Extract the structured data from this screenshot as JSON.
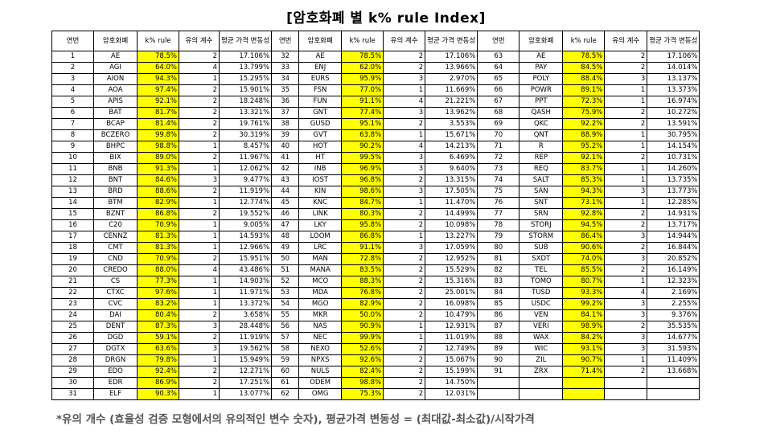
{
  "title": "[암호화폐 별  k% rule Index]",
  "headers": [
    "연번",
    "암호화폐",
    "k% rule",
    "유의 계수",
    "평균 가격 변동성"
  ],
  "rows": [
    [
      "1",
      "AE",
      "78.5%",
      "2",
      "17.106%"
    ],
    [
      "2",
      "AGI",
      "64.0%",
      "4",
      "13.799%"
    ],
    [
      "3",
      "AION",
      "94.3%",
      "1",
      "15.295%"
    ],
    [
      "4",
      "AOA",
      "97.4%",
      "2",
      "15.901%"
    ],
    [
      "5",
      "APIS",
      "92.1%",
      "2",
      "18.248%"
    ],
    [
      "6",
      "BAT",
      "81.7%",
      "2",
      "13.321%"
    ],
    [
      "7",
      "BCAP",
      "81.4%",
      "2",
      "19.761%"
    ],
    [
      "8",
      "BCZERO",
      "99.8%",
      "2",
      "30.319%"
    ],
    [
      "9",
      "BHPC",
      "98.8%",
      "1",
      "8.457%"
    ],
    [
      "10",
      "BIX",
      "89.0%",
      "2",
      "11.967%"
    ],
    [
      "11",
      "BNB",
      "91.3%",
      "1",
      "12.062%"
    ],
    [
      "12",
      "BNT",
      "84.6%",
      "3",
      "9.477%"
    ],
    [
      "13",
      "BRD",
      "88.6%",
      "2",
      "11.919%"
    ],
    [
      "14",
      "BTM",
      "82.9%",
      "1",
      "12.774%"
    ],
    [
      "15",
      "BZNT",
      "86.8%",
      "2",
      "19.552%"
    ],
    [
      "16",
      "C20",
      "70.9%",
      "1",
      "9.005%"
    ],
    [
      "17",
      "CENNZ",
      "81.3%",
      "1",
      "14.593%"
    ],
    [
      "18",
      "CMT",
      "81.3%",
      "1",
      "12.966%"
    ],
    [
      "19",
      "CND",
      "70.9%",
      "2",
      "15.951%"
    ],
    [
      "20",
      "CREDO",
      "88.0%",
      "4",
      "43.486%"
    ],
    [
      "21",
      "CS",
      "77.3%",
      "1",
      "14.903%"
    ],
    [
      "22",
      "CTXC",
      "97.6%",
      "1",
      "11.971%"
    ],
    [
      "23",
      "CVC",
      "83.2%",
      "1",
      "13.372%"
    ],
    [
      "24",
      "DAI",
      "80.4%",
      "2",
      "3.658%"
    ],
    [
      "25",
      "DENT",
      "87.3%",
      "3",
      "28.448%"
    ],
    [
      "26",
      "DGD",
      "59.1%",
      "2",
      "11.919%"
    ],
    [
      "27",
      "DGTX",
      "63.6%",
      "3",
      "19.562%"
    ],
    [
      "28",
      "DRGN",
      "79.8%",
      "1",
      "15.949%"
    ],
    [
      "29",
      "EDO",
      "92.4%",
      "2",
      "12.271%"
    ],
    [
      "30",
      "EDR",
      "86.9%",
      "2",
      "17.251%"
    ],
    [
      "31",
      "ELF",
      "90.3%",
      "1",
      "13.077%"
    ],
    [
      "32",
      "AE",
      "78.5%",
      "2",
      "17.106%"
    ],
    [
      "33",
      "ENJ",
      "62.0%",
      "2",
      "13.966%"
    ],
    [
      "34",
      "EURS",
      "95.9%",
      "3",
      "2.970%"
    ],
    [
      "35",
      "FSN",
      "77.0%",
      "1",
      "11.669%"
    ],
    [
      "36",
      "FUN",
      "91.1%",
      "4",
      "21.221%"
    ],
    [
      "37",
      "GNT",
      "77.4%",
      "3",
      "13.962%"
    ],
    [
      "38",
      "GUSD",
      "95.1%",
      "2",
      "3.553%"
    ],
    [
      "39",
      "GVT",
      "63.8%",
      "1",
      "15.671%"
    ],
    [
      "40",
      "HOT",
      "90.2%",
      "4",
      "14.213%"
    ],
    [
      "41",
      "HT",
      "99.5%",
      "3",
      "6.469%"
    ],
    [
      "42",
      "INB",
      "96.9%",
      "3",
      "9.640%"
    ],
    [
      "43",
      "IOST",
      "96.8%",
      "2",
      "13.315%"
    ],
    [
      "44",
      "KIN",
      "98.6%",
      "3",
      "17.505%"
    ],
    [
      "45",
      "KNC",
      "84.7%",
      "1",
      "11.470%"
    ],
    [
      "46",
      "LINK",
      "80.3%",
      "2",
      "14.499%"
    ],
    [
      "47",
      "LKY",
      "95.8%",
      "2",
      "10.098%"
    ],
    [
      "48",
      "LOOM",
      "86.8%",
      "1",
      "13.227%"
    ],
    [
      "49",
      "LRC",
      "91.1%",
      "3",
      "17.059%"
    ],
    [
      "50",
      "MAN",
      "72.8%",
      "2",
      "12.952%"
    ],
    [
      "51",
      "MANA",
      "83.5%",
      "2",
      "15.529%"
    ],
    [
      "52",
      "MCO",
      "88.3%",
      "2",
      "15.316%"
    ],
    [
      "53",
      "MDA",
      "76.8%",
      "2",
      "25.001%"
    ],
    [
      "54",
      "MGO",
      "82.9%",
      "2",
      "16.098%"
    ],
    [
      "55",
      "MKR",
      "50.0%",
      "2",
      "10.479%"
    ],
    [
      "56",
      "NAS",
      "90.9%",
      "1",
      "12.931%"
    ],
    [
      "57",
      "NEC",
      "99.9%",
      "1",
      "11.019%"
    ],
    [
      "58",
      "NEXO",
      "52.6%",
      "2",
      "12.749%"
    ],
    [
      "59",
      "NPXS",
      "92.6%",
      "2",
      "15.067%"
    ],
    [
      "60",
      "NULS",
      "82.4%",
      "2",
      "15.199%"
    ],
    [
      "61",
      "ODEM",
      "98.8%",
      "2",
      "14.750%"
    ],
    [
      "62",
      "OMG",
      "75.3%",
      "2",
      "12.031%"
    ],
    [
      "63",
      "AE",
      "78.5%",
      "2",
      "17.106%"
    ],
    [
      "64",
      "PAY",
      "84.5%",
      "2",
      "14.014%"
    ],
    [
      "65",
      "POLY",
      "88.4%",
      "3",
      "13.137%"
    ],
    [
      "66",
      "POWR",
      "89.1%",
      "1",
      "13.373%"
    ],
    [
      "67",
      "PPT",
      "72.3%",
      "1",
      "16.974%"
    ],
    [
      "68",
      "QASH",
      "75.9%",
      "2",
      "10.272%"
    ],
    [
      "69",
      "QKC",
      "92.2%",
      "2",
      "13.591%"
    ],
    [
      "70",
      "QNT",
      "88.9%",
      "1",
      "30.795%"
    ],
    [
      "71",
      "R",
      "95.2%",
      "1",
      "14.154%"
    ],
    [
      "72",
      "REP",
      "92.1%",
      "2",
      "10.731%"
    ],
    [
      "73",
      "REQ",
      "83.7%",
      "1",
      "14.260%"
    ],
    [
      "74",
      "SALT",
      "85.3%",
      "1",
      "13.735%"
    ],
    [
      "75",
      "SAN",
      "94.3%",
      "3",
      "13.773%"
    ],
    [
      "76",
      "SNT",
      "73.1%",
      "1",
      "12.285%"
    ],
    [
      "77",
      "SRN",
      "92.8%",
      "2",
      "14.931%"
    ],
    [
      "78",
      "STORJ",
      "94.5%",
      "2",
      "13.717%"
    ],
    [
      "79",
      "STORM",
      "86.4%",
      "3",
      "14.944%"
    ],
    [
      "80",
      "SUB",
      "90.6%",
      "2",
      "16.844%"
    ],
    [
      "81",
      "SXDT",
      "74.0%",
      "3",
      "20.852%"
    ],
    [
      "82",
      "TEL",
      "85.5%",
      "2",
      "16.149%"
    ],
    [
      "83",
      "TOMO",
      "80.7%",
      "1",
      "12.323%"
    ],
    [
      "84",
      "TUSD",
      "93.3%",
      "4",
      "2.169%"
    ],
    [
      "85",
      "USDC",
      "99.2%",
      "3",
      "2.255%"
    ],
    [
      "86",
      "VEN",
      "84.1%",
      "3",
      "9.376%"
    ],
    [
      "87",
      "VERI",
      "98.9%",
      "2",
      "35.535%"
    ],
    [
      "88",
      "WAX",
      "84.2%",
      "3",
      "14.677%"
    ],
    [
      "89",
      "WIC",
      "93.1%",
      "3",
      "31.593%"
    ],
    [
      "90",
      "ZIL",
      "90.7%",
      "1",
      "11.409%"
    ],
    [
      "91",
      "ZRX",
      "71.4%",
      "2",
      "13.668%"
    ]
  ],
  "footnote": "*유의 개수 (효율성 검증 모형에서의 유의적인 변수 숫자), 평균가격 변동성 = (최대값-최소값)/시작가격",
  "colors": {
    "highlight": "#ffff00",
    "footnote_text": "#555555"
  }
}
